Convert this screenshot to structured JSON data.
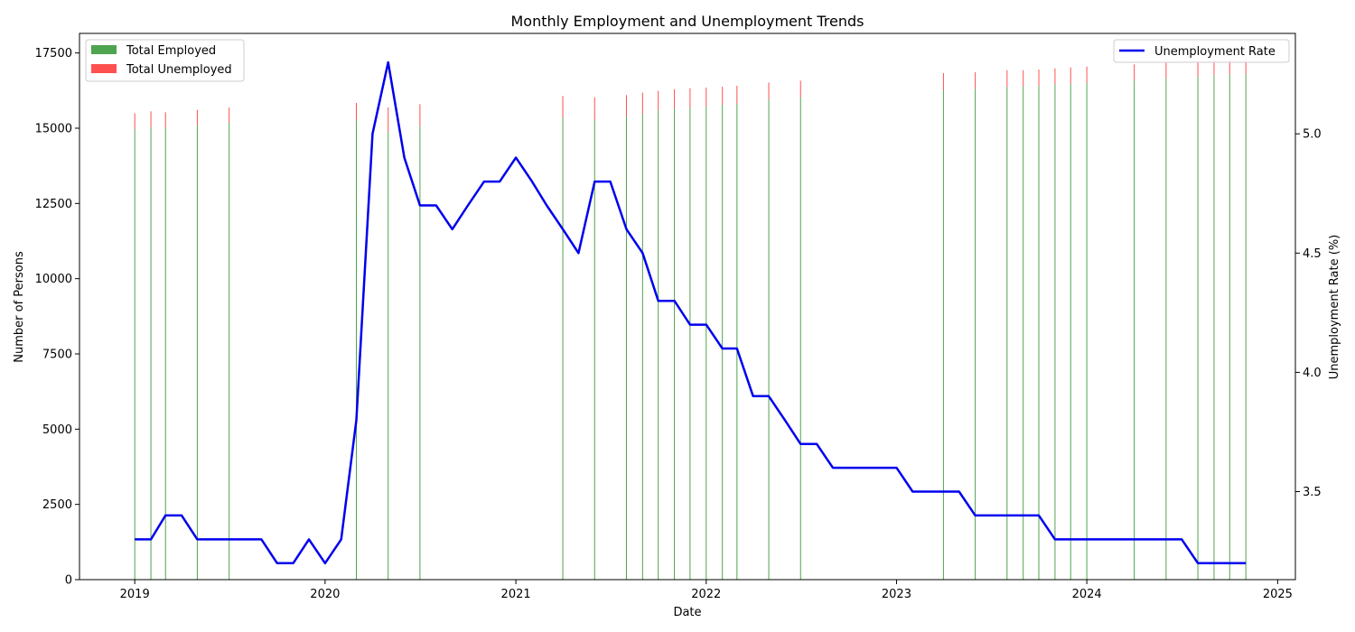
{
  "chart_data": {
    "type": "bar+line",
    "title": "Monthly Employment and Unemployment Trends",
    "xlabel": "Date",
    "ylabel": "Number of Persons",
    "y2label": "Unemployment Rate (%)",
    "xlim": [
      "2018-09-17",
      "2025-02-04"
    ],
    "ylim": [
      0,
      18150
    ],
    "y2lim": [
      3.131,
      5.421
    ],
    "x_ticks": [
      "2019",
      "2020",
      "2021",
      "2022",
      "2023",
      "2024",
      "2025"
    ],
    "y_ticks": [
      0,
      2500,
      5000,
      7500,
      10000,
      12500,
      15000,
      17500
    ],
    "y2_ticks": [
      3.5,
      4.0,
      4.5,
      5.0
    ],
    "legend_left": {
      "placement": "upper-left",
      "entries": [
        "Total Employed",
        "Total Unemployed"
      ]
    },
    "legend_right": {
      "placement": "upper-right",
      "entries": [
        "Unemployment Rate"
      ]
    },
    "colors": {
      "employed": "#4fa44f",
      "unemployed": "#ff5050",
      "rate": "#0000ee"
    },
    "bars": [
      {
        "date": "2019-01-01",
        "employed": 14980,
        "unemployed": 520
      },
      {
        "date": "2019-02-01",
        "employed": 15040,
        "unemployed": 520
      },
      {
        "date": "2019-03-01",
        "employed": 15000,
        "unemployed": 530
      },
      {
        "date": "2019-05-01",
        "employed": 15100,
        "unemployed": 510
      },
      {
        "date": "2019-07-01",
        "employed": 15180,
        "unemployed": 510
      },
      {
        "date": "2020-03-01",
        "employed": 15260,
        "unemployed": 580
      },
      {
        "date": "2020-05-01",
        "employed": 14890,
        "unemployed": 800
      },
      {
        "date": "2020-07-01",
        "employed": 15080,
        "unemployed": 720
      },
      {
        "date": "2021-04-01",
        "employed": 15350,
        "unemployed": 720
      },
      {
        "date": "2021-06-01",
        "employed": 15260,
        "unemployed": 770
      },
      {
        "date": "2021-08-01",
        "employed": 15380,
        "unemployed": 720
      },
      {
        "date": "2021-09-01",
        "employed": 15480,
        "unemployed": 700
      },
      {
        "date": "2021-10-01",
        "employed": 15590,
        "unemployed": 650
      },
      {
        "date": "2021-11-01",
        "employed": 15640,
        "unemployed": 660
      },
      {
        "date": "2021-12-01",
        "employed": 15680,
        "unemployed": 650
      },
      {
        "date": "2022-01-01",
        "employed": 15720,
        "unemployed": 630
      },
      {
        "date": "2022-02-01",
        "employed": 15780,
        "unemployed": 600
      },
      {
        "date": "2022-03-01",
        "employed": 15810,
        "unemployed": 600
      },
      {
        "date": "2022-05-01",
        "employed": 15950,
        "unemployed": 570
      },
      {
        "date": "2022-07-01",
        "employed": 16020,
        "unemployed": 560
      },
      {
        "date": "2023-04-01",
        "employed": 16250,
        "unemployed": 580
      },
      {
        "date": "2023-06-01",
        "employed": 16310,
        "unemployed": 550
      },
      {
        "date": "2023-08-01",
        "employed": 16380,
        "unemployed": 550
      },
      {
        "date": "2023-09-01",
        "employed": 16390,
        "unemployed": 540
      },
      {
        "date": "2023-10-01",
        "employed": 16410,
        "unemployed": 540
      },
      {
        "date": "2023-11-01",
        "employed": 16460,
        "unemployed": 530
      },
      {
        "date": "2023-12-01",
        "employed": 16480,
        "unemployed": 540
      },
      {
        "date": "2024-01-01",
        "employed": 16510,
        "unemployed": 540
      },
      {
        "date": "2024-04-01",
        "employed": 16590,
        "unemployed": 530
      },
      {
        "date": "2024-06-01",
        "employed": 16660,
        "unemployed": 530
      },
      {
        "date": "2024-08-01",
        "employed": 16720,
        "unemployed": 510
      },
      {
        "date": "2024-09-01",
        "employed": 16760,
        "unemployed": 500
      },
      {
        "date": "2024-10-01",
        "employed": 16780,
        "unemployed": 500
      },
      {
        "date": "2024-11-01",
        "employed": 16800,
        "unemployed": 500
      }
    ],
    "rate_series": {
      "name": "Unemployment Rate",
      "points": [
        [
          "2019-01-01",
          3.3
        ],
        [
          "2019-02-01",
          3.3
        ],
        [
          "2019-03-01",
          3.4
        ],
        [
          "2019-04-01",
          3.4
        ],
        [
          "2019-05-01",
          3.3
        ],
        [
          "2019-06-01",
          3.3
        ],
        [
          "2019-07-01",
          3.3
        ],
        [
          "2019-08-01",
          3.3
        ],
        [
          "2019-09-01",
          3.3
        ],
        [
          "2019-10-01",
          3.2
        ],
        [
          "2019-11-01",
          3.2
        ],
        [
          "2019-12-01",
          3.3
        ],
        [
          "2020-01-01",
          3.2
        ],
        [
          "2020-02-01",
          3.3
        ],
        [
          "2020-03-01",
          3.8
        ],
        [
          "2020-04-01",
          5.0
        ],
        [
          "2020-05-01",
          5.3
        ],
        [
          "2020-06-01",
          4.9
        ],
        [
          "2020-07-01",
          4.7
        ],
        [
          "2020-08-01",
          4.7
        ],
        [
          "2020-09-01",
          4.6
        ],
        [
          "2020-10-01",
          4.7
        ],
        [
          "2020-11-01",
          4.8
        ],
        [
          "2020-12-01",
          4.8
        ],
        [
          "2021-01-01",
          4.9
        ],
        [
          "2021-02-01",
          4.8
        ],
        [
          "2021-03-01",
          4.7
        ],
        [
          "2021-04-01",
          4.6
        ],
        [
          "2021-05-01",
          4.5
        ],
        [
          "2021-06-01",
          4.8
        ],
        [
          "2021-07-01",
          4.8
        ],
        [
          "2021-08-01",
          4.6
        ],
        [
          "2021-09-01",
          4.5
        ],
        [
          "2021-10-01",
          4.3
        ],
        [
          "2021-11-01",
          4.3
        ],
        [
          "2021-12-01",
          4.2
        ],
        [
          "2022-01-01",
          4.2
        ],
        [
          "2022-02-01",
          4.1
        ],
        [
          "2022-03-01",
          4.1
        ],
        [
          "2022-04-01",
          3.9
        ],
        [
          "2022-05-01",
          3.9
        ],
        [
          "2022-06-01",
          3.8
        ],
        [
          "2022-07-01",
          3.7
        ],
        [
          "2022-08-01",
          3.7
        ],
        [
          "2022-09-01",
          3.6
        ],
        [
          "2022-10-01",
          3.6
        ],
        [
          "2022-11-01",
          3.6
        ],
        [
          "2022-12-01",
          3.6
        ],
        [
          "2023-01-01",
          3.6
        ],
        [
          "2023-02-01",
          3.5
        ],
        [
          "2023-03-01",
          3.5
        ],
        [
          "2023-04-01",
          3.5
        ],
        [
          "2023-05-01",
          3.5
        ],
        [
          "2023-06-01",
          3.4
        ],
        [
          "2023-07-01",
          3.4
        ],
        [
          "2023-08-01",
          3.4
        ],
        [
          "2023-09-01",
          3.4
        ],
        [
          "2023-10-01",
          3.4
        ],
        [
          "2023-11-01",
          3.3
        ],
        [
          "2023-12-01",
          3.3
        ],
        [
          "2024-01-01",
          3.3
        ],
        [
          "2024-02-01",
          3.3
        ],
        [
          "2024-03-01",
          3.3
        ],
        [
          "2024-04-01",
          3.3
        ],
        [
          "2024-05-01",
          3.3
        ],
        [
          "2024-06-01",
          3.3
        ],
        [
          "2024-07-01",
          3.3
        ],
        [
          "2024-08-01",
          3.2
        ],
        [
          "2024-09-01",
          3.2
        ],
        [
          "2024-10-01",
          3.2
        ],
        [
          "2024-11-01",
          3.2
        ]
      ]
    }
  }
}
